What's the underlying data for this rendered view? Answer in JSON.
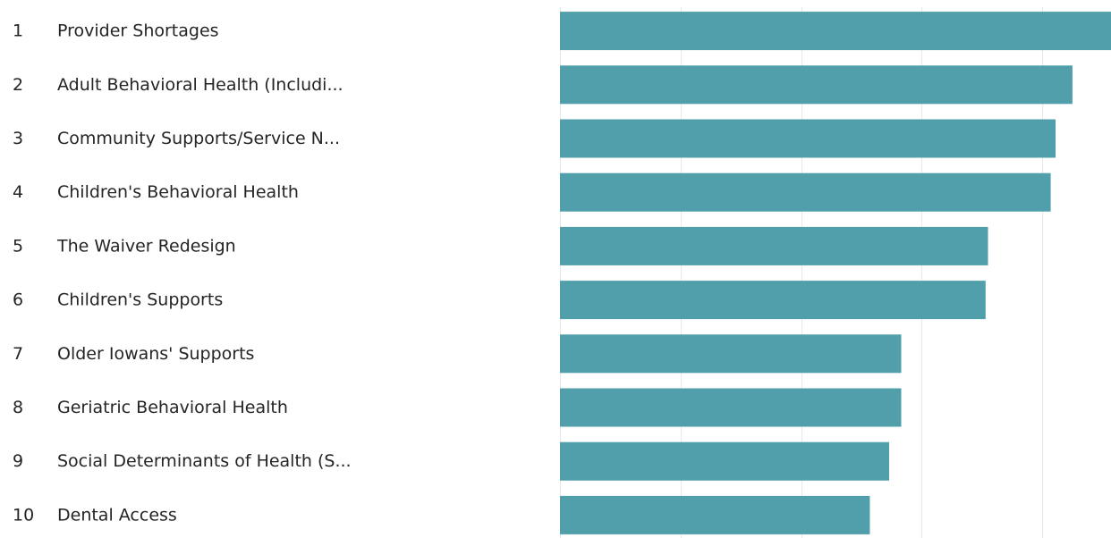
{
  "chart_data": {
    "type": "bar",
    "orientation": "horizontal",
    "title": "",
    "xlabel": "",
    "ylabel": "",
    "ranks": [
      "1",
      "2",
      "3",
      "4",
      "5",
      "6",
      "7",
      "8",
      "9",
      "10"
    ],
    "categories": [
      "Provider Shortages",
      "Adult Behavioral Health (Includi...",
      "Community Supports/Service N...",
      "Children's Behavioral Health",
      "The Waiver Redesign",
      "Children's Supports",
      "Older Iowans' Supports",
      "Geriatric Behavioral Health",
      "Social Determinants of Health (S...",
      "Dental Access"
    ],
    "values": [
      4.57,
      4.25,
      4.11,
      4.07,
      3.55,
      3.53,
      2.83,
      2.83,
      2.73,
      2.57
    ],
    "xlim": [
      0,
      4.57
    ],
    "gridlines": [
      0,
      1,
      2,
      3,
      4
    ],
    "grid": true,
    "bar_color": "#509faa",
    "grid_color": "#e8e8e8"
  }
}
